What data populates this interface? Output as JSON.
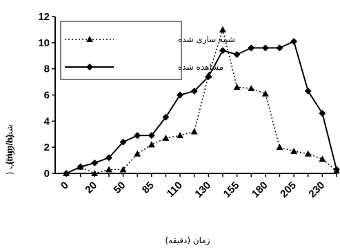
{
  "chart_data": {
    "type": "line",
    "x_tick_labels": [
      "0",
      "20",
      "50",
      "85",
      "110",
      "130",
      "155",
      "180",
      "205",
      "230"
    ],
    "xlabel": "زمان (دقیقه)",
    "ylabel_text": "شدت رواناب (",
    "ylabel_unit": "(mm/h)",
    "ylim": [
      0,
      12
    ],
    "yticks": [
      0,
      2,
      4,
      6,
      8,
      10,
      12
    ],
    "grid": false,
    "legend_position": "top-left",
    "series": [
      {
        "name": "شبیه سازی شده",
        "style": "dotted",
        "marker": "triangle",
        "color": "#000000",
        "x": [
          0,
          1,
          2,
          3,
          4,
          5,
          6,
          7,
          8,
          9,
          10,
          11,
          12,
          13,
          14,
          15,
          16,
          17,
          18,
          19
        ],
        "values": [
          0.0,
          0.5,
          0.0,
          0.3,
          0.3,
          1.5,
          2.2,
          2.7,
          2.9,
          3.2,
          7.5,
          11.0,
          6.6,
          6.5,
          6.1,
          2.0,
          1.7,
          1.5,
          1.1,
          0.2
        ]
      },
      {
        "name": "مشاهده شده",
        "style": "solid",
        "marker": "diamond",
        "color": "#000000",
        "x": [
          0,
          1,
          2,
          3,
          4,
          5,
          6,
          7,
          8,
          9,
          10,
          11,
          12,
          13,
          14,
          15,
          16,
          17,
          18,
          19
        ],
        "values": [
          0.0,
          0.5,
          0.8,
          1.2,
          2.4,
          2.9,
          2.9,
          4.3,
          6.0,
          6.3,
          7.4,
          9.4,
          9.1,
          9.6,
          9.6,
          9.6,
          10.1,
          6.3,
          4.6,
          0.3
        ]
      }
    ]
  }
}
